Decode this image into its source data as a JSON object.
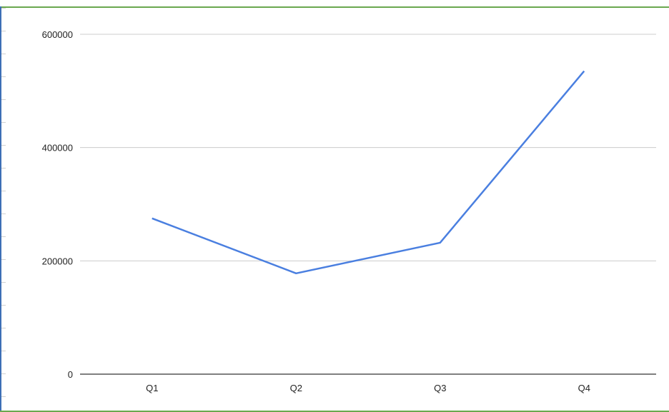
{
  "chart_data": {
    "type": "line",
    "categories": [
      "Q1",
      "Q2",
      "Q3",
      "Q4"
    ],
    "series": [
      {
        "values": [
          275000,
          178000,
          232000,
          535000
        ]
      }
    ],
    "ylim": [
      0,
      600000
    ],
    "yticks": [
      0,
      200000,
      400000,
      600000
    ],
    "ytick_labels": [
      "0",
      "200000",
      "400000",
      "600000"
    ],
    "grid": true,
    "legend": "none",
    "colors": {
      "line": "#4a7fe0",
      "grid": "#cccccc",
      "axis": "#333333"
    }
  }
}
